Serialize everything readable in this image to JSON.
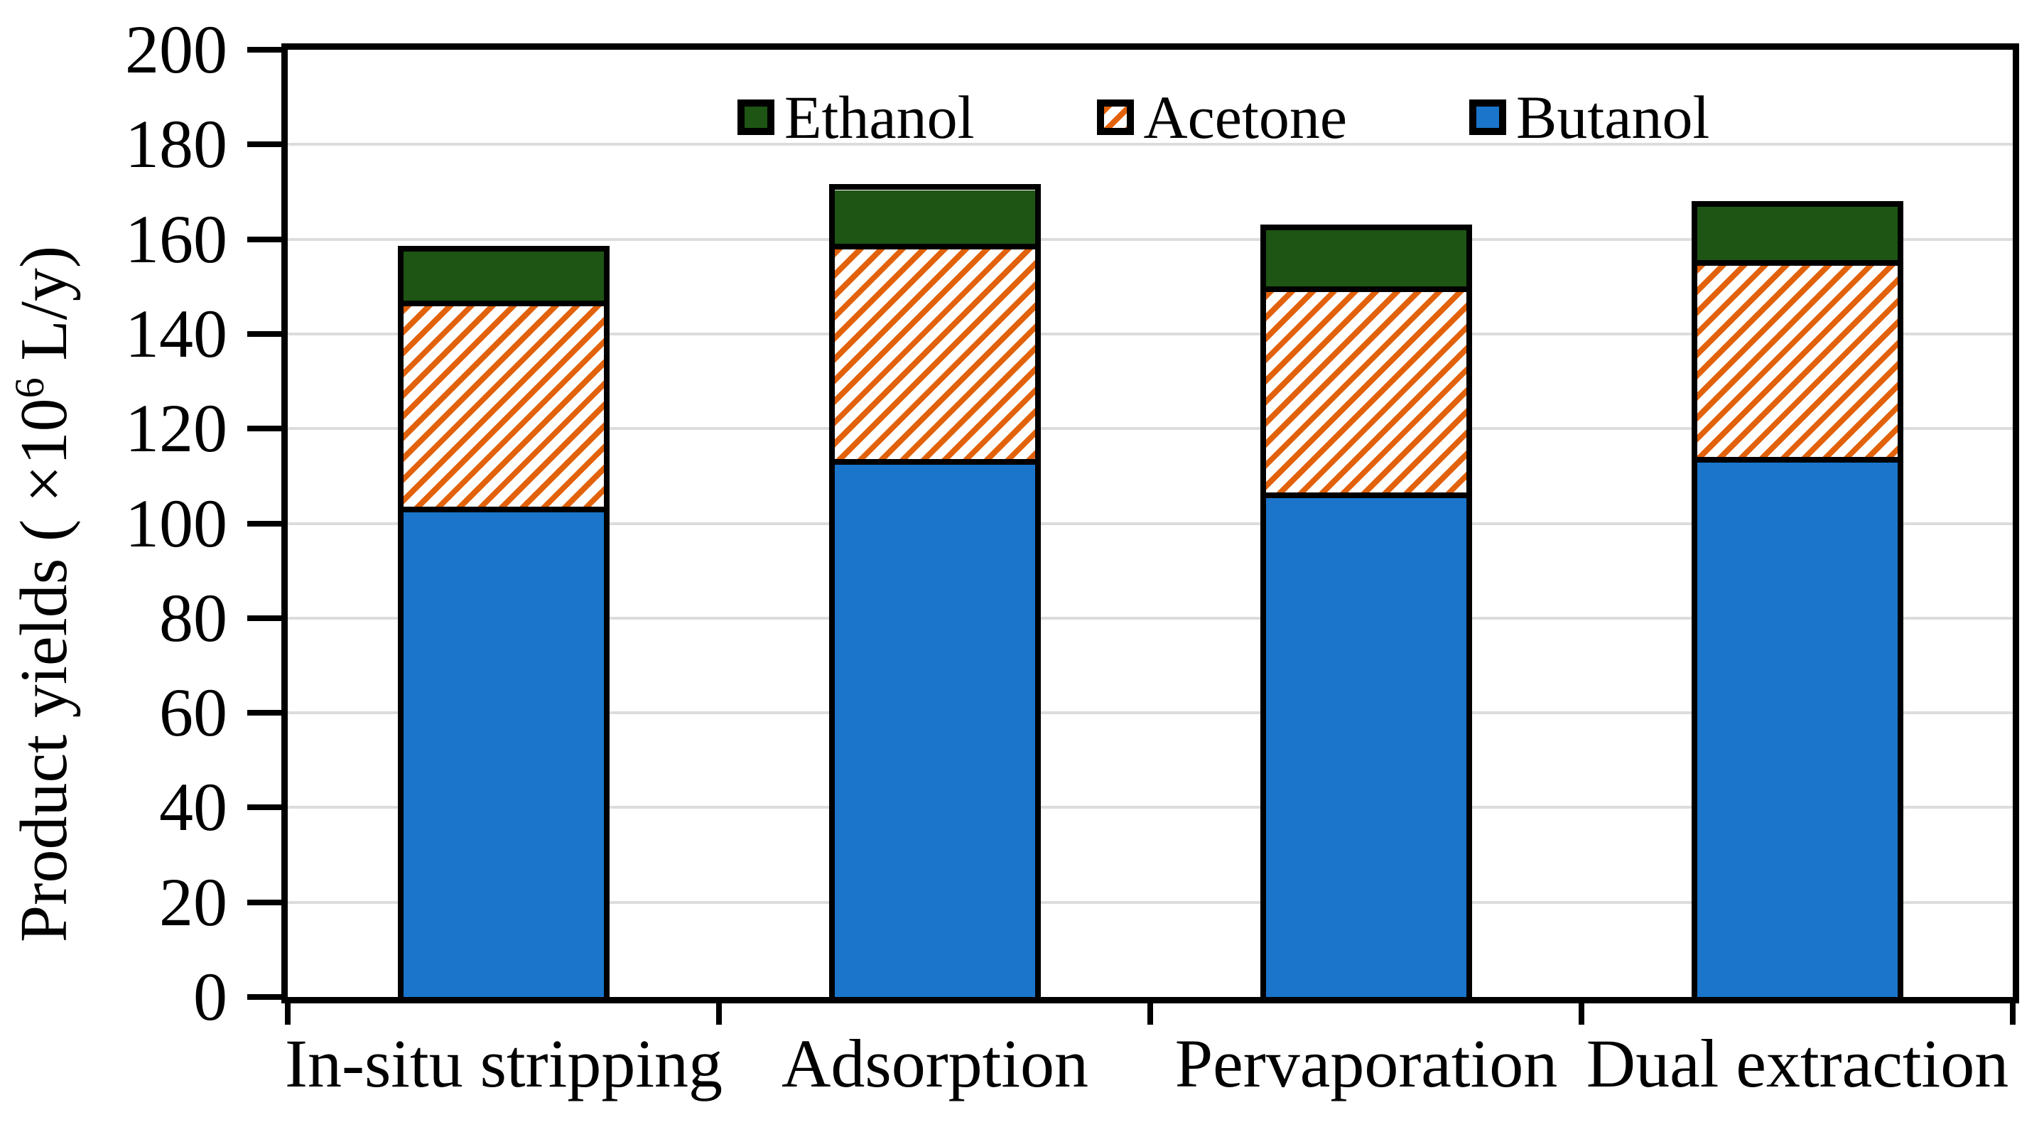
{
  "y_axis_title": {
    "prefix": "Product yields ( ×10",
    "superscript": "6",
    "suffix": " L/y)"
  },
  "chart_data": {
    "type": "bar",
    "stacked": true,
    "title": "",
    "ylabel": "Product yields ( ×10⁶ L/y)",
    "xlabel": "",
    "ylim": [
      0,
      200
    ],
    "ytick_step": 20,
    "yticks": [
      0,
      20,
      40,
      60,
      80,
      100,
      120,
      140,
      160,
      180,
      200
    ],
    "grid": "horizontal-light-gray",
    "legend_position": "top-inside",
    "legend_order": [
      "Ethanol",
      "Acetone",
      "Butanol"
    ],
    "categories": [
      "In-situ stripping",
      "Adsorption",
      "Pervaporation",
      "Dual extraction"
    ],
    "series": [
      {
        "name": "Butanol",
        "style": "solid-blue",
        "values": [
          103.0,
          113.0,
          106.0,
          113.5
        ]
      },
      {
        "name": "Acetone",
        "style": "orange-diagonal-hatch",
        "values": [
          43.5,
          45.5,
          43.5,
          41.5
        ]
      },
      {
        "name": "Ethanol",
        "style": "solid-dark-green",
        "values": [
          11.5,
          12.5,
          13.0,
          12.5
        ]
      }
    ],
    "stack_totals": [
      158.0,
      171.0,
      162.5,
      167.5
    ]
  },
  "colors": {
    "butanol_blue": "#1A75CB",
    "acetone_orange": "#E2620B",
    "ethanol_green": "#1E5514",
    "hatch_background": "#FFFFFF",
    "gridline_gray": "#DCDCDC",
    "axis_black": "#000000"
  }
}
